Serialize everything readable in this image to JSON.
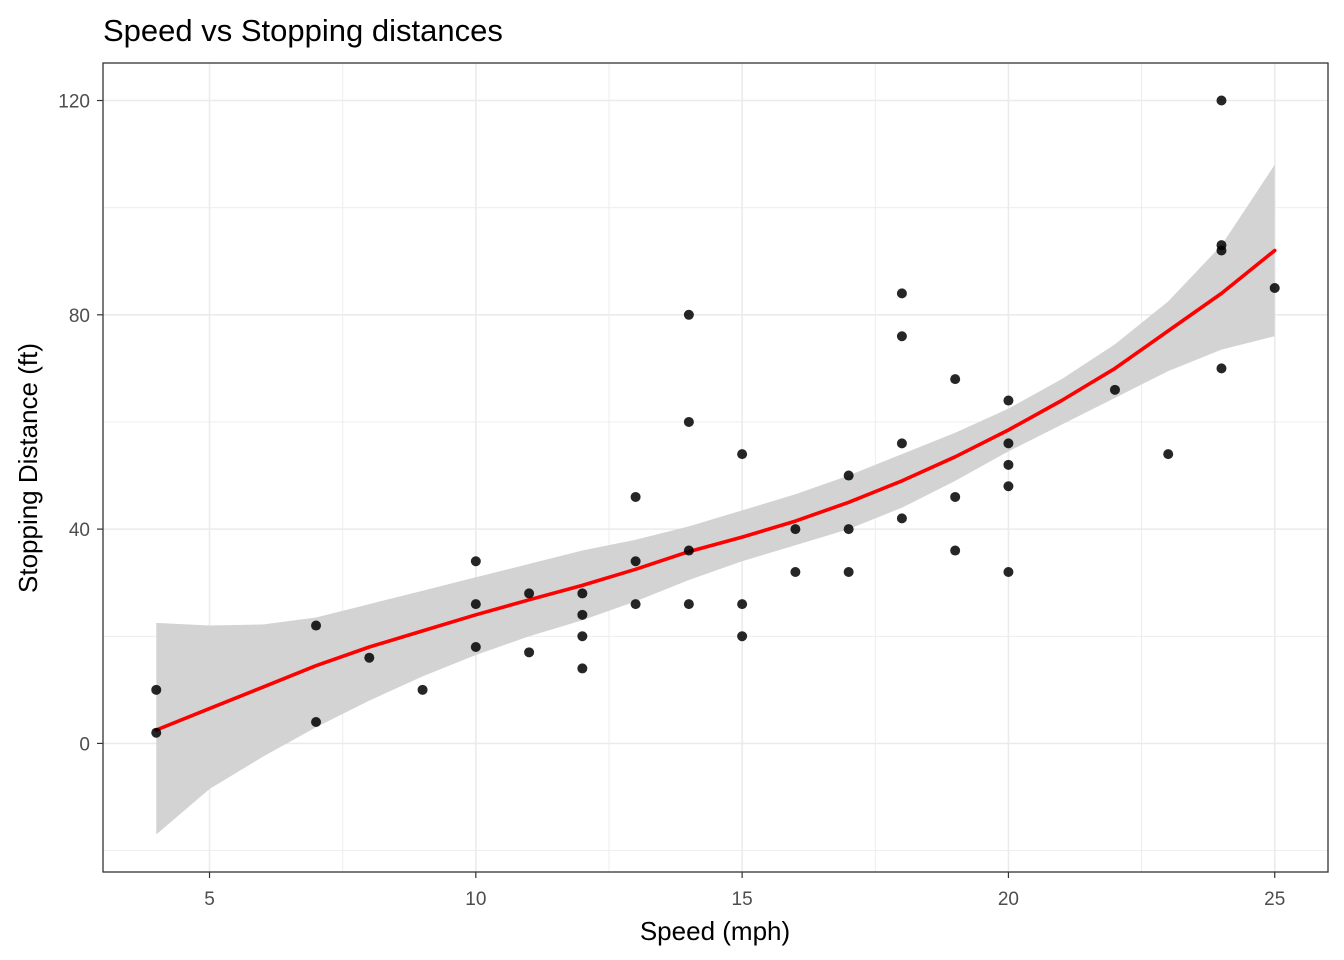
{
  "chart_data": {
    "type": "scatter",
    "title": "Speed vs Stopping distances",
    "xlabel": "Speed (mph)",
    "ylabel": "Stopping Distance (ft)",
    "xlim": [
      3,
      26
    ],
    "ylim": [
      -24,
      127
    ],
    "x_ticks": [
      5,
      10,
      15,
      20,
      25
    ],
    "y_ticks": [
      0,
      40,
      80,
      120
    ],
    "x_minor": [
      7.5,
      12.5,
      17.5,
      22.5
    ],
    "y_minor": [
      -20,
      20,
      60,
      100
    ],
    "grid": true,
    "legend": "none",
    "colors": {
      "points": "#000000",
      "trend": "#ff0000",
      "band": "#d3d3d3",
      "grid": "#ebebeb",
      "border": "#333333"
    },
    "points": [
      [
        4,
        2
      ],
      [
        4,
        10
      ],
      [
        7,
        4
      ],
      [
        7,
        22
      ],
      [
        8,
        16
      ],
      [
        9,
        10
      ],
      [
        10,
        18
      ],
      [
        10,
        26
      ],
      [
        10,
        34
      ],
      [
        11,
        17
      ],
      [
        11,
        28
      ],
      [
        12,
        14
      ],
      [
        12,
        20
      ],
      [
        12,
        24
      ],
      [
        12,
        28
      ],
      [
        13,
        26
      ],
      [
        13,
        34
      ],
      [
        13,
        46
      ],
      [
        14,
        26
      ],
      [
        14,
        36
      ],
      [
        14,
        60
      ],
      [
        14,
        80
      ],
      [
        15,
        20
      ],
      [
        15,
        26
      ],
      [
        15,
        54
      ],
      [
        16,
        32
      ],
      [
        16,
        40
      ],
      [
        17,
        32
      ],
      [
        17,
        40
      ],
      [
        17,
        50
      ],
      [
        18,
        42
      ],
      [
        18,
        56
      ],
      [
        18,
        76
      ],
      [
        18,
        84
      ],
      [
        19,
        36
      ],
      [
        19,
        46
      ],
      [
        19,
        68
      ],
      [
        20,
        32
      ],
      [
        20,
        48
      ],
      [
        20,
        52
      ],
      [
        20,
        56
      ],
      [
        20,
        64
      ],
      [
        22,
        66
      ],
      [
        23,
        54
      ],
      [
        24,
        70
      ],
      [
        24,
        92
      ],
      [
        24,
        93
      ],
      [
        24,
        120
      ],
      [
        25,
        85
      ]
    ],
    "trend_line": [
      [
        4,
        2.5
      ],
      [
        5,
        6.5
      ],
      [
        6,
        10.5
      ],
      [
        7,
        14.5
      ],
      [
        8,
        18
      ],
      [
        9,
        21
      ],
      [
        10,
        24
      ],
      [
        11,
        26.8
      ],
      [
        12,
        29.5
      ],
      [
        13,
        32.5
      ],
      [
        14,
        35.8
      ],
      [
        15,
        38.5
      ],
      [
        16,
        41.5
      ],
      [
        17,
        45
      ],
      [
        18,
        49
      ],
      [
        19,
        53.5
      ],
      [
        20,
        58.5
      ],
      [
        21,
        64
      ],
      [
        22,
        70
      ],
      [
        23,
        77
      ],
      [
        24,
        84
      ],
      [
        25,
        92
      ]
    ],
    "confidence_band": {
      "upper": [
        [
          4,
          22.5
        ],
        [
          5,
          22
        ],
        [
          6,
          22.2
        ],
        [
          7,
          23.5
        ],
        [
          8,
          26
        ],
        [
          9,
          28.5
        ],
        [
          10,
          31
        ],
        [
          11,
          33.5
        ],
        [
          12,
          36
        ],
        [
          13,
          38
        ],
        [
          14,
          40.5
        ],
        [
          15,
          43.5
        ],
        [
          16,
          46.5
        ],
        [
          17,
          50
        ],
        [
          18,
          54
        ],
        [
          19,
          58
        ],
        [
          20,
          62.5
        ],
        [
          21,
          68
        ],
        [
          22,
          74.5
        ],
        [
          23,
          82.5
        ],
        [
          24,
          93
        ],
        [
          25,
          108
        ]
      ],
      "lower": [
        [
          4,
          -17
        ],
        [
          5,
          -8.5
        ],
        [
          6,
          -2.5
        ],
        [
          7,
          3
        ],
        [
          8,
          8
        ],
        [
          9,
          12.5
        ],
        [
          10,
          16.5
        ],
        [
          11,
          20
        ],
        [
          12,
          23
        ],
        [
          13,
          26.5
        ],
        [
          14,
          30.5
        ],
        [
          15,
          34
        ],
        [
          16,
          37
        ],
        [
          17,
          40
        ],
        [
          18,
          44
        ],
        [
          19,
          49
        ],
        [
          20,
          54.5
        ],
        [
          21,
          59.5
        ],
        [
          22,
          64.5
        ],
        [
          23,
          69.5
        ],
        [
          24,
          73.5
        ],
        [
          25,
          76
        ]
      ]
    }
  }
}
